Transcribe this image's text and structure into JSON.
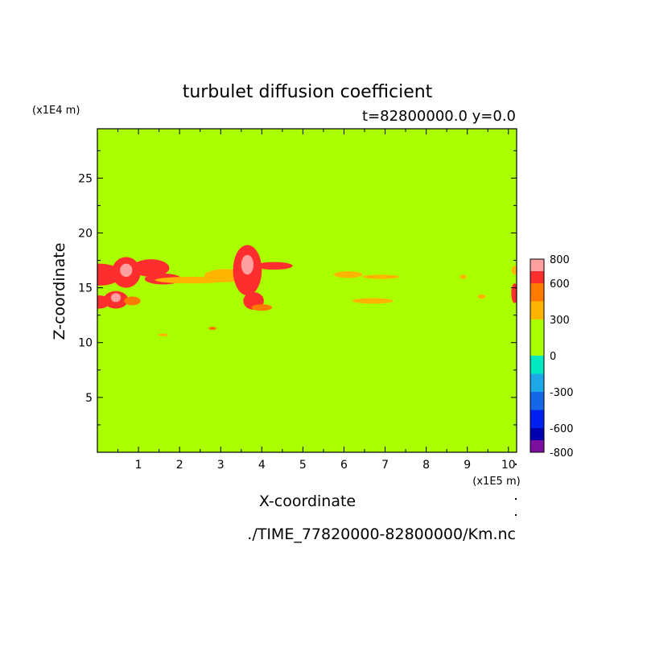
{
  "chart_data": {
    "type": "heatmap",
    "title": "turbulet diffusion coefficient",
    "subtitle": "t=82800000.0 y=0.0",
    "xlabel": "X-coordinate",
    "ylabel": "Z-coordinate",
    "x_unit": "(x1E5 m)",
    "y_unit": "(x1E4 m)",
    "source_file": "./TIME_77820000-82800000/Km.nc",
    "xlim": [
      0,
      10.2
    ],
    "ylim": [
      0,
      29.5
    ],
    "x_ticks": [
      "1",
      "2",
      "3",
      "4",
      "5",
      "6",
      "7",
      "8",
      "9",
      "10"
    ],
    "y_ticks": [
      "5",
      "10",
      "15",
      "20",
      "25"
    ],
    "background_value": 0,
    "colorbar": {
      "labels": [
        "800",
        "600",
        "300",
        "0",
        "-300",
        "-600",
        "-800"
      ],
      "label_values": [
        800,
        600,
        300,
        0,
        -300,
        -600,
        -800
      ],
      "levels": [
        {
          "min": -800,
          "max": -700,
          "color": "#7a0fa0"
        },
        {
          "min": -700,
          "max": -600,
          "color": "#0000b0"
        },
        {
          "min": -600,
          "max": -450,
          "color": "#0020f0"
        },
        {
          "min": -450,
          "max": -300,
          "color": "#1468e8"
        },
        {
          "min": -300,
          "max": -150,
          "color": "#1ea8e8"
        },
        {
          "min": -150,
          "max": 0,
          "color": "#00e8c0"
        },
        {
          "min": 0,
          "max": 150,
          "color": "#aaff00"
        },
        {
          "min": 150,
          "max": 300,
          "color": "#aaff00"
        },
        {
          "min": 300,
          "max": 450,
          "color": "#ffb400"
        },
        {
          "min": 450,
          "max": 600,
          "color": "#ff7a00"
        },
        {
          "min": 600,
          "max": 700,
          "color": "#ff2e2e"
        },
        {
          "min": 700,
          "max": 800,
          "color": "#ffa0a0"
        }
      ]
    },
    "regions": [
      {
        "x": 0.05,
        "y": 16.2,
        "rx": 0.55,
        "ry": 1.0,
        "value": 650
      },
      {
        "x": 0.7,
        "y": 16.4,
        "rx": 0.35,
        "ry": 1.4,
        "value": 650
      },
      {
        "x": 0.7,
        "y": 16.6,
        "rx": 0.15,
        "ry": 0.6,
        "value": 780
      },
      {
        "x": 1.3,
        "y": 16.8,
        "rx": 0.45,
        "ry": 0.8,
        "value": 650
      },
      {
        "x": 1.6,
        "y": 15.8,
        "rx": 0.45,
        "ry": 0.5,
        "value": 620
      },
      {
        "x": 2.3,
        "y": 15.7,
        "rx": 0.9,
        "ry": 0.3,
        "value": 380
      },
      {
        "x": 0.05,
        "y": 13.7,
        "rx": 0.25,
        "ry": 0.6,
        "value": 650
      },
      {
        "x": 0.45,
        "y": 13.9,
        "rx": 0.3,
        "ry": 0.8,
        "value": 650
      },
      {
        "x": 0.45,
        "y": 14.1,
        "rx": 0.12,
        "ry": 0.4,
        "value": 780
      },
      {
        "x": 0.85,
        "y": 13.8,
        "rx": 0.2,
        "ry": 0.4,
        "value": 520
      },
      {
        "x": 3.1,
        "y": 16.1,
        "rx": 0.5,
        "ry": 0.6,
        "value": 380
      },
      {
        "x": 3.65,
        "y": 16.6,
        "rx": 0.35,
        "ry": 2.3,
        "value": 650
      },
      {
        "x": 3.65,
        "y": 17.1,
        "rx": 0.15,
        "ry": 0.9,
        "value": 780
      },
      {
        "x": 3.8,
        "y": 13.8,
        "rx": 0.25,
        "ry": 0.8,
        "value": 650
      },
      {
        "x": 4.0,
        "y": 13.2,
        "rx": 0.25,
        "ry": 0.3,
        "value": 520
      },
      {
        "x": 4.3,
        "y": 17.0,
        "rx": 0.45,
        "ry": 0.35,
        "value": 650
      },
      {
        "x": 2.8,
        "y": 11.3,
        "rx": 0.1,
        "ry": 0.15,
        "value": 520
      },
      {
        "x": 1.6,
        "y": 10.7,
        "rx": 0.12,
        "ry": 0.12,
        "value": 420
      },
      {
        "x": 6.1,
        "y": 16.2,
        "rx": 0.35,
        "ry": 0.3,
        "value": 380
      },
      {
        "x": 6.9,
        "y": 16.0,
        "rx": 0.45,
        "ry": 0.2,
        "value": 380
      },
      {
        "x": 6.7,
        "y": 13.8,
        "rx": 0.5,
        "ry": 0.25,
        "value": 380
      },
      {
        "x": 8.9,
        "y": 16.0,
        "rx": 0.08,
        "ry": 0.2,
        "value": 380
      },
      {
        "x": 9.35,
        "y": 14.2,
        "rx": 0.1,
        "ry": 0.2,
        "value": 380
      },
      {
        "x": 10.15,
        "y": 14.5,
        "rx": 0.08,
        "ry": 0.9,
        "value": 650
      },
      {
        "x": 10.15,
        "y": 16.6,
        "rx": 0.07,
        "ry": 0.4,
        "value": 380
      }
    ]
  }
}
